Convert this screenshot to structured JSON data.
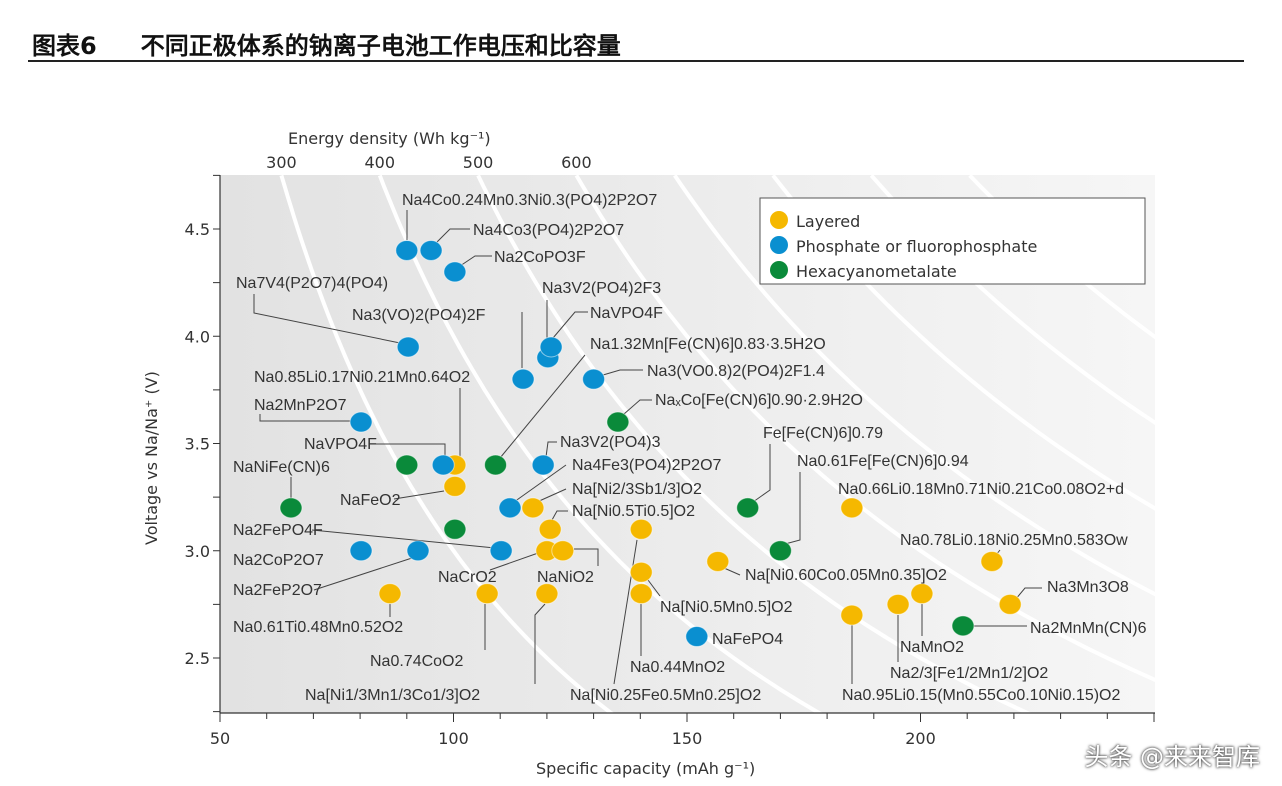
{
  "header": {
    "figure_no": "图表6",
    "title": "不同正极体系的钠离子电池工作电压和比容量"
  },
  "watermark": "头条 @来来智库",
  "chart_data": {
    "type": "scatter",
    "xlabel": "Specific capacity (mAh g⁻¹)",
    "ylabel": "Voltage vs Na/Na⁺ (V)",
    "top_axis_label": "Energy density (Wh kg⁻¹)",
    "xlim": [
      50,
      250
    ],
    "ylim": [
      2.24,
      4.75
    ],
    "x_ticks": [
      50,
      100,
      150,
      200
    ],
    "y_ticks": [
      2.5,
      3.0,
      3.5,
      4.0,
      4.5
    ],
    "top_ticks": [
      300,
      400,
      500,
      600
    ],
    "energy_curves": [
      300,
      400,
      500,
      600,
      700,
      800,
      900,
      1000
    ],
    "legend": {
      "placement": "top-right",
      "entries": [
        {
          "key": "layered",
          "name": "Layered",
          "color": "#f5b800"
        },
        {
          "key": "phosphate",
          "name": "Phosphate or fluorophosphate",
          "color": "#0a8fd0"
        },
        {
          "key": "hexa",
          "name": "Hexacyanometalate",
          "color": "#0a8a3a"
        }
      ]
    },
    "points": [
      {
        "label": "Na4Co0.24Mn0.3Ni0.3(PO4)2P2O7",
        "x": 90,
        "y": 4.4,
        "cls": "phosphate"
      },
      {
        "label": "Na4Co3(PO4)2P2O7",
        "x": 95.2,
        "y": 4.4,
        "cls": "phosphate"
      },
      {
        "label": "Na2CoPO3F",
        "x": 100.3,
        "y": 4.3,
        "cls": "phosphate"
      },
      {
        "label": "Na7V4(P2O7)4(PO4)",
        "x": 90.3,
        "y": 3.95,
        "cls": "phosphate"
      },
      {
        "label": "Na3(VO)2(PO4)2F",
        "x": 114.9,
        "y": 3.8,
        "cls": "phosphate"
      },
      {
        "label": "Na3V2(PO4)2F3",
        "x": 120.2,
        "y": 3.9,
        "cls": "phosphate"
      },
      {
        "label": "NaVPO4F",
        "x": 120.9,
        "y": 3.95,
        "cls": "phosphate"
      },
      {
        "label": "Na0.85Li0.17Ni0.21Mn0.64O2",
        "x": 100.3,
        "y": 3.4,
        "cls": "layered"
      },
      {
        "label": "Na2MnP2O7",
        "x": 80.2,
        "y": 3.6,
        "cls": "phosphate"
      },
      {
        "label": "NaVPO4F",
        "x": 97.8,
        "y": 3.4,
        "cls": "phosphate"
      },
      {
        "label": "NaNiFe(CN)6",
        "x": 65.2,
        "y": 3.2,
        "cls": "hexa"
      },
      {
        "label": "Na1.32Mn[Fe(CN)6]0.83·3.5H2O",
        "x": 109,
        "y": 3.4,
        "cls": "hexa"
      },
      {
        "label": "Na3(VO0.8)2(PO4)2F1.4",
        "x": 130,
        "y": 3.8,
        "cls": "phosphate"
      },
      {
        "label": "NaₓCo[Fe(CN)6]0.90·2.9H2O",
        "x": 135.2,
        "y": 3.6,
        "cls": "hexa"
      },
      {
        "label": "",
        "x": 90,
        "y": 3.4,
        "cls": "hexa"
      },
      {
        "label": "Na3V2(PO4)3",
        "x": 119.2,
        "y": 3.4,
        "cls": "phosphate"
      },
      {
        "label": "Na4Fe3(PO4)2P2O7",
        "x": 112.1,
        "y": 3.2,
        "cls": "phosphate"
      },
      {
        "label": "Na[Ni2/3Sb1/3]O2",
        "x": 117,
        "y": 3.2,
        "cls": "layered"
      },
      {
        "label": "Na[Ni0.5Ti0.5]O2",
        "x": 120.7,
        "y": 3.1,
        "cls": "layered"
      },
      {
        "label": "NaFeO2",
        "x": 100.3,
        "y": 3.3,
        "cls": "layered"
      },
      {
        "label": "Na2FePO4F",
        "x": 110.2,
        "y": 3.0,
        "cls": "phosphate"
      },
      {
        "label": "Na2CoP2O7",
        "x": 80.2,
        "y": 3.0,
        "cls": "phosphate"
      },
      {
        "label": "Na2FeP2O7",
        "x": 92.4,
        "y": 3.0,
        "cls": "phosphate"
      },
      {
        "label": "NaCrO2",
        "x": 120,
        "y": 3.0,
        "cls": "layered"
      },
      {
        "label": "NaNiO2",
        "x": 123.4,
        "y": 3.0,
        "cls": "layered"
      },
      {
        "label": "Na[Ni0.25Fe0.5Mn0.25]O2",
        "x": 140.2,
        "y": 3.1,
        "cls": "layered"
      },
      {
        "label": "Na[Ni0.5Mn0.5]O2",
        "x": 140.2,
        "y": 2.9,
        "cls": "layered"
      },
      {
        "label": "Na0.44MnO2",
        "x": 140.2,
        "y": 2.8,
        "cls": "layered"
      },
      {
        "label": "Na0.61Ti0.48Mn0.52O2",
        "x": 86.4,
        "y": 2.8,
        "cls": "layered"
      },
      {
        "label": "Na0.74CoO2",
        "x": 107.2,
        "y": 2.8,
        "cls": "layered"
      },
      {
        "label": "Na[Ni1/3Mn1/3Co1/3]O2",
        "x": 120,
        "y": 2.8,
        "cls": "layered"
      },
      {
        "label": "NaFePO4",
        "x": 152.1,
        "y": 2.6,
        "cls": "phosphate"
      },
      {
        "label": "Fe[Fe(CN)6]0.79",
        "x": 163,
        "y": 3.2,
        "cls": "hexa"
      },
      {
        "label": "Na0.61Fe[Fe(CN)6]0.94",
        "x": 170,
        "y": 3.0,
        "cls": "hexa"
      },
      {
        "label": "Na[Ni0.60Co0.05Mn0.35]O2",
        "x": 156.6,
        "y": 2.95,
        "cls": "layered"
      },
      {
        "label": "Na0.66Li0.18Mn0.71Ni0.21Co0.08O2+d",
        "x": 185.3,
        "y": 3.2,
        "cls": "layered"
      },
      {
        "label": "Na0.78Li0.18Ni0.25Mn0.583Ow",
        "x": 215.3,
        "y": 2.95,
        "cls": "layered"
      },
      {
        "label": "Na3Mn3O8",
        "x": 219.2,
        "y": 2.75,
        "cls": "layered"
      },
      {
        "label": "Na2MnMn(CN)6",
        "x": 209.1,
        "y": 2.65,
        "cls": "hexa"
      },
      {
        "label": "NaMnO2",
        "x": 200.3,
        "y": 2.8,
        "cls": "layered"
      },
      {
        "label": "Na2/3[Fe1/2Mn1/2]O2",
        "x": 195.2,
        "y": 2.75,
        "cls": "layered"
      },
      {
        "label": "Na0.95Li0.15(Mn0.55Co0.10Ni0.15)O2",
        "x": 185.3,
        "y": 2.7,
        "cls": "layered"
      },
      {
        "label": "",
        "x": 100.3,
        "y": 3.1,
        "cls": "hexa"
      }
    ]
  }
}
